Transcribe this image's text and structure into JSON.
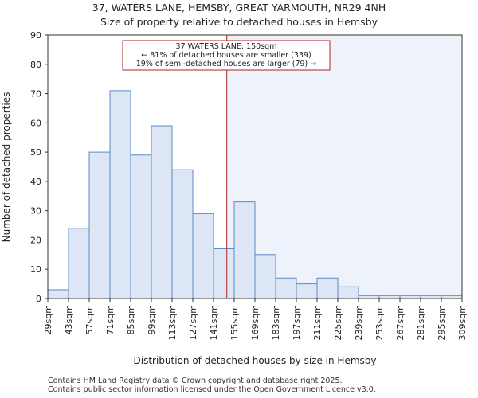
{
  "chart_data": {
    "type": "bar",
    "title": "37, WATERS LANE, HEMSBY, GREAT YARMOUTH, NR29 4NH",
    "subtitle": "Size of property relative to detached houses in Hemsby",
    "xlabel": "Distribution of detached houses by size in Hemsby",
    "ylabel": "Number of detached properties",
    "ylim": [
      0,
      90
    ],
    "yticks": [
      "0",
      "10",
      "20",
      "30",
      "40",
      "50",
      "60",
      "70",
      "80",
      "90"
    ],
    "bin_edges": [
      "29sqm",
      "43sqm",
      "57sqm",
      "71sqm",
      "85sqm",
      "99sqm",
      "113sqm",
      "127sqm",
      "141sqm",
      "155sqm",
      "169sqm",
      "183sqm",
      "197sqm",
      "211sqm",
      "225sqm",
      "239sqm",
      "253sqm",
      "267sqm",
      "281sqm",
      "295sqm",
      "309sqm"
    ],
    "values": [
      3,
      24,
      50,
      71,
      49,
      59,
      44,
      29,
      17,
      33,
      15,
      7,
      5,
      7,
      4,
      1,
      1,
      1,
      1,
      1
    ],
    "x_start": 29,
    "bin_width": 14,
    "property_size": 150,
    "annotation": {
      "line1": "37 WATERS LANE: 150sqm",
      "line2": "← 81% of detached houses are smaller (339)",
      "line3": "19% of semi-detached houses are larger (79) →"
    },
    "colors": {
      "bar_fill": "#dce6f5",
      "bar_stroke": "#5b8ac6",
      "highlight_region": "#eef3fb",
      "marker_line": "#b22222",
      "annotation_border": "#b22222"
    }
  },
  "footer": {
    "line1": "Contains HM Land Registry data © Crown copyright and database right 2025.",
    "line2": "Contains public sector information licensed under the Open Government Licence v3.0."
  }
}
